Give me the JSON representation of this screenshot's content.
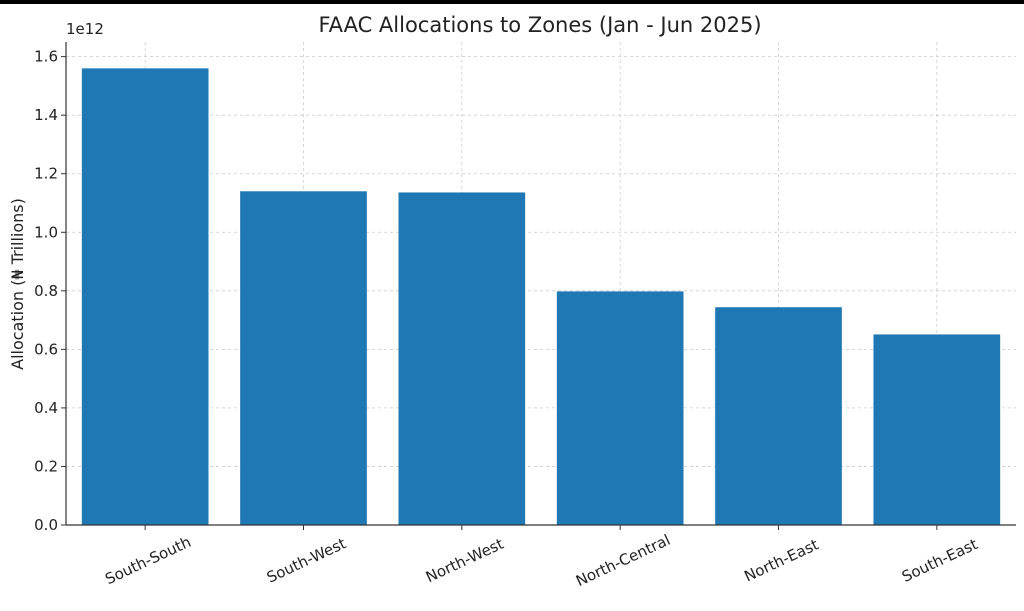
{
  "chart_data": {
    "type": "bar",
    "title": "FAAC Allocations to Zones (Jan - Jun 2025)",
    "xlabel": "",
    "ylabel": "Allocation (₦ Trillions)",
    "offset_text": "1e12",
    "categories": [
      "South-South",
      "South-West",
      "North-West",
      "North-Central",
      "North-East",
      "South-East"
    ],
    "values": [
      1560000000000,
      1140000000000,
      1136000000000,
      798000000000,
      744000000000,
      651000000000
    ],
    "ylim": [
      0,
      1650000000000
    ],
    "yticks": [
      0,
      200000000000,
      400000000000,
      600000000000,
      800000000000,
      1000000000000,
      1200000000000,
      1400000000000,
      1600000000000
    ],
    "ytick_labels": [
      "0.0",
      "0.2",
      "0.4",
      "0.6",
      "0.8",
      "1.0",
      "1.2",
      "1.4",
      "1.6"
    ],
    "grid": true,
    "bar_color": "#1f77b4",
    "grid_color": "#cccccc"
  }
}
